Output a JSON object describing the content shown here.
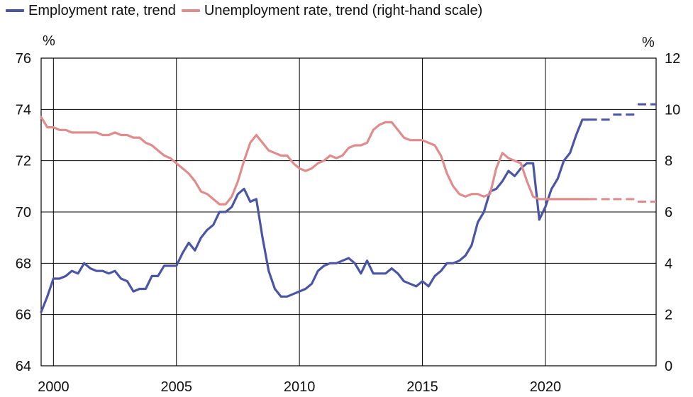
{
  "chart_data": {
    "type": "line",
    "title": "",
    "legend_position": "top",
    "grid": true,
    "xlim": [
      1999.5,
      2024.5
    ],
    "ylim_left": [
      64,
      76
    ],
    "ylim_right": [
      0,
      12
    ],
    "y_unit_left": "%",
    "y_unit_right": "%",
    "x_ticks": [
      2000,
      2005,
      2010,
      2015,
      2020
    ],
    "x_tick_labels": [
      "2000",
      "2005",
      "2010",
      "2015",
      "2020"
    ],
    "y_ticks_left": [
      "64",
      "66",
      "68",
      "70",
      "72",
      "74",
      "76"
    ],
    "y_ticks_right": [
      "0",
      "2",
      "4",
      "6",
      "8",
      "10",
      "12"
    ],
    "series": [
      {
        "name": "Employment rate, trend",
        "axis": "left",
        "color": "#4b55a6",
        "x": [
          1999.5,
          1999.75,
          2000.0,
          2000.25,
          2000.5,
          2000.75,
          2001.0,
          2001.25,
          2001.5,
          2001.75,
          2002.0,
          2002.25,
          2002.5,
          2002.75,
          2003.0,
          2003.25,
          2003.5,
          2003.75,
          2004.0,
          2004.25,
          2004.5,
          2004.75,
          2005.0,
          2005.25,
          2005.5,
          2005.75,
          2006.0,
          2006.25,
          2006.5,
          2006.75,
          2007.0,
          2007.25,
          2007.5,
          2007.75,
          2008.0,
          2008.25,
          2008.5,
          2008.75,
          2009.0,
          2009.25,
          2009.5,
          2009.75,
          2010.0,
          2010.25,
          2010.5,
          2010.75,
          2011.0,
          2011.25,
          2011.5,
          2011.75,
          2012.0,
          2012.25,
          2012.5,
          2012.75,
          2013.0,
          2013.25,
          2013.5,
          2013.75,
          2014.0,
          2014.25,
          2014.5,
          2014.75,
          2015.0,
          2015.25,
          2015.5,
          2015.75,
          2016.0,
          2016.25,
          2016.5,
          2016.75,
          2017.0,
          2017.25,
          2017.5,
          2017.75,
          2018.0,
          2018.25,
          2018.5,
          2018.75,
          2019.0,
          2019.25,
          2019.5,
          2019.75,
          2020.0,
          2020.25,
          2020.5,
          2020.75,
          2021.0,
          2021.25,
          2021.5,
          2021.75
        ],
        "values": [
          66.1,
          66.7,
          67.4,
          67.4,
          67.5,
          67.7,
          67.6,
          68.0,
          67.8,
          67.7,
          67.7,
          67.6,
          67.7,
          67.4,
          67.3,
          66.9,
          67.0,
          67.0,
          67.5,
          67.5,
          67.9,
          67.9,
          67.9,
          68.4,
          68.8,
          68.5,
          69.0,
          69.3,
          69.5,
          70.0,
          70.0,
          70.2,
          70.7,
          70.9,
          70.4,
          70.5,
          69.0,
          67.7,
          67.0,
          66.7,
          66.7,
          66.8,
          66.9,
          67.0,
          67.2,
          67.7,
          67.9,
          68.0,
          68.0,
          68.1,
          68.2,
          68.0,
          67.6,
          68.1,
          67.6,
          67.6,
          67.6,
          67.8,
          67.6,
          67.3,
          67.2,
          67.1,
          67.3,
          67.1,
          67.5,
          67.7,
          68.0,
          68.0,
          68.1,
          68.3,
          68.7,
          69.6,
          70.0,
          70.8,
          70.9,
          71.2,
          71.6,
          71.4,
          71.7,
          71.9,
          71.9,
          69.7,
          70.2,
          70.9,
          71.3,
          72.0,
          72.3,
          73.0,
          73.6,
          73.6
        ],
        "forecast": [
          {
            "x": [
              2021.75,
              2022.75
            ],
            "value": 73.6
          },
          {
            "x": [
              2022.75,
              2023.75
            ],
            "value": 73.8
          },
          {
            "x": [
              2023.75,
              2024.5
            ],
            "value": 74.2
          }
        ]
      },
      {
        "name": "Unemployment rate, trend (right-hand scale)",
        "axis": "right",
        "color": "#e08c8c",
        "x": [
          1999.5,
          1999.75,
          2000.0,
          2000.25,
          2000.5,
          2000.75,
          2001.0,
          2001.25,
          2001.5,
          2001.75,
          2002.0,
          2002.25,
          2002.5,
          2002.75,
          2003.0,
          2003.25,
          2003.5,
          2003.75,
          2004.0,
          2004.25,
          2004.5,
          2004.75,
          2005.0,
          2005.25,
          2005.5,
          2005.75,
          2006.0,
          2006.25,
          2006.5,
          2006.75,
          2007.0,
          2007.25,
          2007.5,
          2007.75,
          2008.0,
          2008.25,
          2008.5,
          2008.75,
          2009.0,
          2009.25,
          2009.5,
          2009.75,
          2010.0,
          2010.25,
          2010.5,
          2010.75,
          2011.0,
          2011.25,
          2011.5,
          2011.75,
          2012.0,
          2012.25,
          2012.5,
          2012.75,
          2013.0,
          2013.25,
          2013.5,
          2013.75,
          2014.0,
          2014.25,
          2014.5,
          2014.75,
          2015.0,
          2015.25,
          2015.5,
          2015.75,
          2016.0,
          2016.25,
          2016.5,
          2016.75,
          2017.0,
          2017.25,
          2017.5,
          2017.75,
          2018.0,
          2018.25,
          2018.5,
          2018.75,
          2019.0,
          2019.25,
          2019.5,
          2019.75,
          2020.0,
          2020.25,
          2020.5,
          2020.75,
          2021.0,
          2021.25,
          2021.5,
          2021.75
        ],
        "values": [
          9.7,
          9.3,
          9.3,
          9.2,
          9.2,
          9.1,
          9.1,
          9.1,
          9.1,
          9.1,
          9.0,
          9.0,
          9.1,
          9.0,
          9.0,
          8.9,
          8.9,
          8.7,
          8.6,
          8.4,
          8.2,
          8.1,
          7.9,
          7.7,
          7.5,
          7.2,
          6.8,
          6.7,
          6.5,
          6.3,
          6.3,
          6.6,
          7.2,
          8.0,
          8.7,
          9.0,
          8.7,
          8.4,
          8.3,
          8.2,
          8.2,
          7.9,
          7.7,
          7.6,
          7.7,
          7.9,
          8.0,
          8.2,
          8.1,
          8.2,
          8.5,
          8.6,
          8.6,
          8.7,
          9.2,
          9.4,
          9.5,
          9.5,
          9.2,
          8.9,
          8.8,
          8.8,
          8.8,
          8.7,
          8.6,
          8.2,
          7.5,
          7.0,
          6.7,
          6.6,
          6.7,
          6.7,
          6.6,
          6.7,
          7.7,
          8.3,
          8.1,
          8.0,
          7.9,
          7.2,
          6.6,
          6.5,
          6.5,
          6.5,
          6.5,
          6.5,
          6.5,
          6.5,
          6.5,
          6.5
        ],
        "forecast": [
          {
            "x": [
              2021.75,
              2022.75
            ],
            "value": 6.5
          },
          {
            "x": [
              2022.75,
              2023.75
            ],
            "value": 6.5
          },
          {
            "x": [
              2023.75,
              2024.5
            ],
            "value": 6.4
          }
        ]
      }
    ]
  }
}
